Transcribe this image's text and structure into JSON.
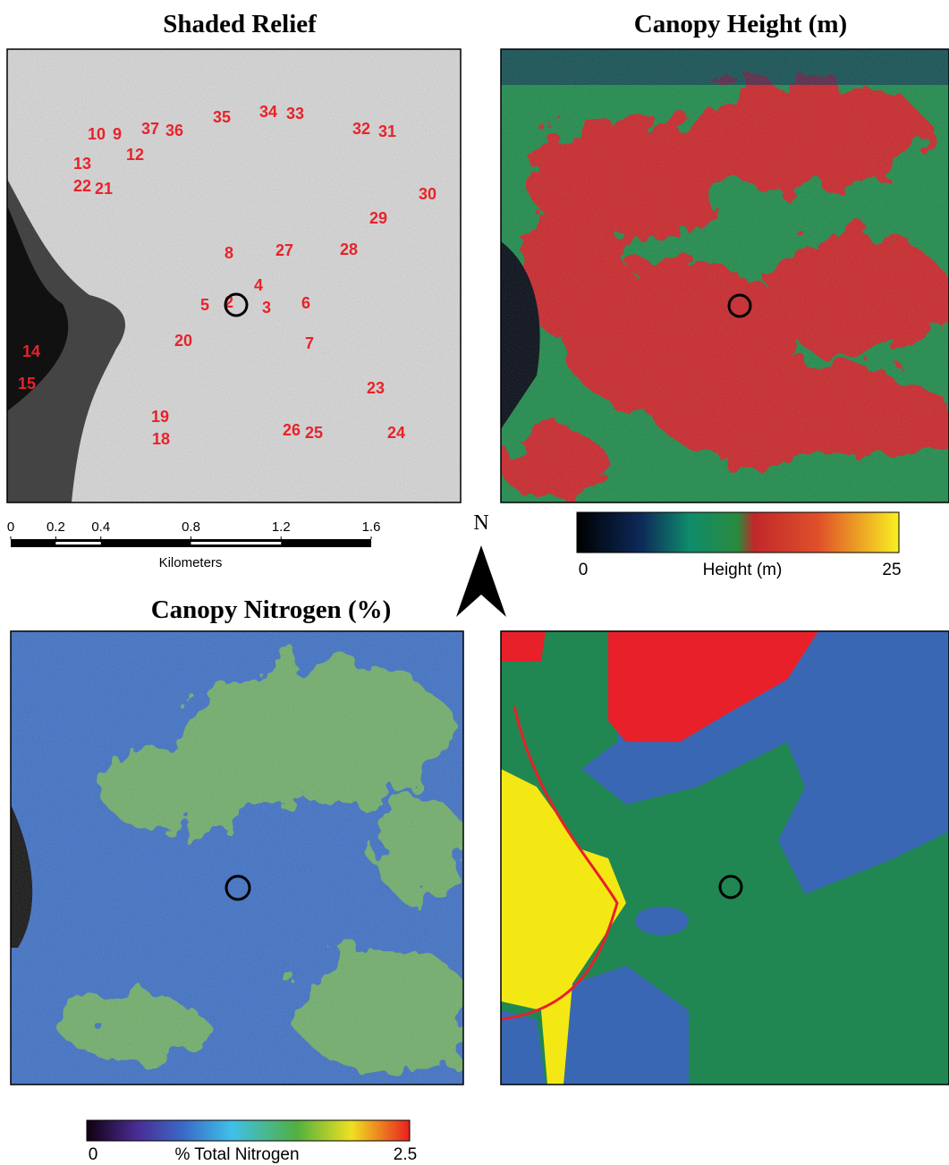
{
  "titles": {
    "relief": "Shaded Relief",
    "height": "Canopy Height (m)",
    "nitrogen": "Canopy Nitrogen (%)"
  },
  "plots": [
    "10",
    "9",
    "37",
    "36",
    "35",
    "34",
    "33",
    "32",
    "31",
    "13",
    "12",
    "22",
    "21",
    "30",
    "29",
    "8",
    "27",
    "28",
    "4",
    "5",
    "2",
    "3",
    "6",
    "20",
    "7",
    "14",
    "15",
    "23",
    "19",
    "18",
    "26",
    "25",
    "24"
  ],
  "scale_bar": {
    "ticks": [
      0,
      0.2,
      0.4,
      0.8,
      1.2,
      1.6
    ],
    "unit": "Kilometers"
  },
  "north": "N",
  "height_legend": {
    "min": 0,
    "label": "Height (m)",
    "max": 25
  },
  "nitrogen_legend": {
    "min": 0,
    "label": "% Total Nitrogen",
    "max": 2.5
  }
}
